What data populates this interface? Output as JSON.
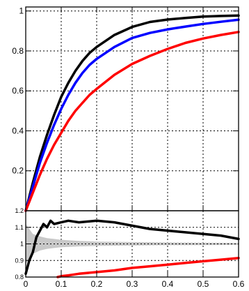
{
  "chart_data": [
    {
      "type": "line",
      "panel": "main",
      "title": "",
      "xlabel": "",
      "ylabel": "",
      "xlim": [
        0,
        0.6
      ],
      "ylim": [
        0,
        1.02
      ],
      "grid": true,
      "grid_style": "dotted",
      "x_ticks": [
        "0",
        "0.1",
        "0.2",
        "0.3",
        "0.4",
        "0.5",
        "0.6"
      ],
      "y_ticks": [
        "0.2",
        "0.4",
        "0.6",
        "0.8",
        "1"
      ],
      "y_tick_values": [
        0.2,
        0.4,
        0.6,
        0.8,
        1.0
      ],
      "series": [
        {
          "color": "#000000",
          "x": [
            0,
            0.02,
            0.04,
            0.06,
            0.08,
            0.1,
            0.12,
            0.14,
            0.16,
            0.18,
            0.2,
            0.25,
            0.3,
            0.35,
            0.4,
            0.45,
            0.5,
            0.55,
            0.6
          ],
          "y": [
            0,
            0.14,
            0.27,
            0.38,
            0.48,
            0.57,
            0.64,
            0.7,
            0.75,
            0.79,
            0.82,
            0.88,
            0.92,
            0.945,
            0.957,
            0.965,
            0.972,
            0.975,
            0.977
          ]
        },
        {
          "color": "#0000ff",
          "x": [
            0,
            0.02,
            0.04,
            0.06,
            0.08,
            0.1,
            0.12,
            0.14,
            0.16,
            0.18,
            0.2,
            0.25,
            0.3,
            0.35,
            0.4,
            0.45,
            0.5,
            0.55,
            0.6
          ],
          "y": [
            0,
            0.12,
            0.24,
            0.34,
            0.43,
            0.51,
            0.58,
            0.64,
            0.69,
            0.73,
            0.76,
            0.82,
            0.865,
            0.89,
            0.908,
            0.922,
            0.935,
            0.946,
            0.956
          ]
        },
        {
          "color": "#ff0000",
          "x": [
            0,
            0.02,
            0.04,
            0.06,
            0.08,
            0.1,
            0.12,
            0.14,
            0.16,
            0.18,
            0.2,
            0.25,
            0.3,
            0.35,
            0.4,
            0.45,
            0.5,
            0.55,
            0.6
          ],
          "y": [
            0,
            0.09,
            0.18,
            0.26,
            0.33,
            0.39,
            0.45,
            0.5,
            0.54,
            0.58,
            0.61,
            0.68,
            0.735,
            0.775,
            0.81,
            0.84,
            0.862,
            0.88,
            0.895
          ]
        }
      ]
    },
    {
      "type": "line",
      "panel": "ratio",
      "title": "",
      "xlabel": "",
      "ylabel": "",
      "xlim": [
        0,
        0.6
      ],
      "ylim": [
        0.8,
        1.2
      ],
      "grid": true,
      "grid_style": "dotted",
      "reference_line": 1.0,
      "x_ticks": [
        "0",
        "0.1",
        "0.2",
        "0.3",
        "0.4",
        "0.5",
        "0.6"
      ],
      "x_tick_values": [
        0,
        0.1,
        0.2,
        0.3,
        0.4,
        0.5,
        0.6
      ],
      "y_ticks": [
        "0.8",
        "0.9",
        "1",
        "1.1",
        "1.2"
      ],
      "y_tick_values": [
        0.8,
        0.9,
        1.0,
        1.1,
        1.2
      ],
      "band": {
        "color": "#c8c8c8",
        "x": [
          0,
          0.02,
          0.04,
          0.06,
          0.08,
          0.1,
          0.15,
          0.2,
          0.3,
          0.4,
          0.5,
          0.6
        ],
        "lower": [
          0.88,
          0.94,
          0.96,
          0.97,
          0.975,
          0.98,
          0.985,
          0.988,
          0.99,
          0.992,
          0.993,
          0.994
        ],
        "upper": [
          1.12,
          1.06,
          1.045,
          1.035,
          1.03,
          1.025,
          1.018,
          1.014,
          1.011,
          1.009,
          1.007,
          1.006
        ]
      },
      "series": [
        {
          "color": "#000000",
          "x": [
            0,
            0.01,
            0.02,
            0.03,
            0.04,
            0.05,
            0.06,
            0.07,
            0.08,
            0.1,
            0.12,
            0.15,
            0.2,
            0.25,
            0.3,
            0.35,
            0.4,
            0.45,
            0.5,
            0.55,
            0.6
          ],
          "y": [
            0.82,
            0.9,
            0.95,
            1.04,
            1.08,
            1.12,
            1.1,
            1.14,
            1.12,
            1.13,
            1.14,
            1.13,
            1.14,
            1.13,
            1.11,
            1.09,
            1.08,
            1.07,
            1.06,
            1.05,
            1.03
          ]
        },
        {
          "color": "#ff0000",
          "x": [
            0.09,
            0.1,
            0.12,
            0.15,
            0.2,
            0.25,
            0.3,
            0.35,
            0.4,
            0.45,
            0.5,
            0.55,
            0.6
          ],
          "y": [
            0.8,
            0.805,
            0.81,
            0.82,
            0.83,
            0.84,
            0.855,
            0.865,
            0.875,
            0.885,
            0.895,
            0.905,
            0.915
          ]
        }
      ]
    }
  ]
}
